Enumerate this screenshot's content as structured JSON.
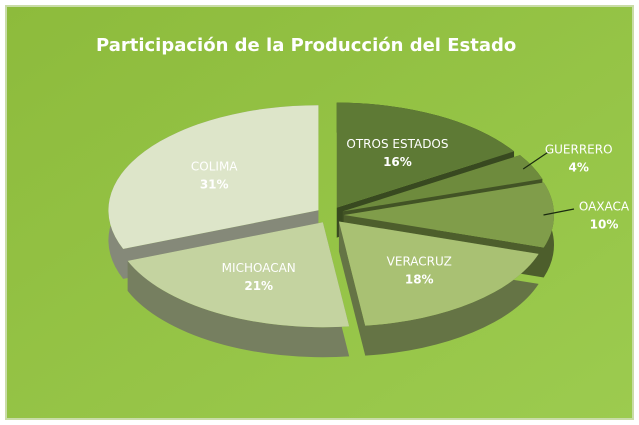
{
  "chart_data": {
    "type": "pie",
    "title": "Participación de la Producción del Estado",
    "categories": [
      "OTROS ESTADOS",
      "GUERRERO",
      "OAXACA",
      "VERACRUZ",
      "MICHOACAN",
      "COLIMA"
    ],
    "values": [
      16,
      4,
      10,
      18,
      21,
      31
    ],
    "value_labels": [
      "16%",
      "4%",
      "10%",
      "18%",
      "21%",
      "31%"
    ],
    "colors": [
      "#5e7a35",
      "#6e8b3d",
      "#809d4a",
      "#a9c173",
      "#c4d3a0",
      "#dde5c9"
    ]
  }
}
